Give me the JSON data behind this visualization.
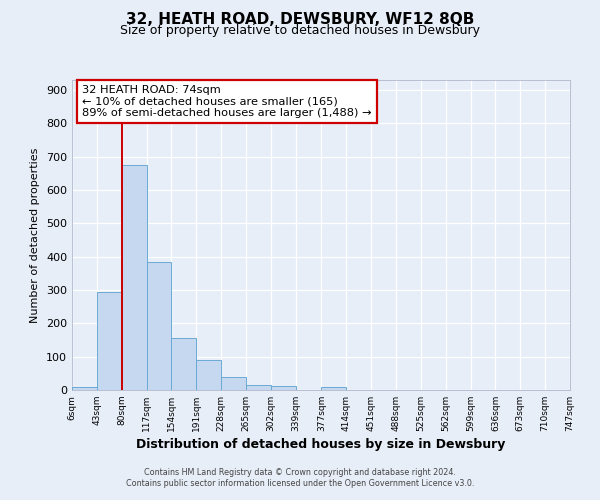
{
  "title": "32, HEATH ROAD, DEWSBURY, WF12 8QB",
  "subtitle": "Size of property relative to detached houses in Dewsbury",
  "xlabel": "Distribution of detached houses by size in Dewsbury",
  "ylabel": "Number of detached properties",
  "bar_edges": [
    6,
    43,
    80,
    117,
    154,
    191,
    228,
    265,
    302,
    339,
    377,
    414,
    451,
    488,
    525,
    562,
    599,
    636,
    673,
    710,
    747
  ],
  "bar_heights": [
    8,
    295,
    675,
    383,
    155,
    90,
    40,
    15,
    12,
    0,
    10,
    0,
    0,
    0,
    0,
    0,
    0,
    0,
    0,
    0
  ],
  "bar_color": "#c5d8f0",
  "bar_edgecolor": "#6aaad4",
  "vline_x": 80,
  "vline_color": "#cc0000",
  "ylim": [
    0,
    930
  ],
  "yticks": [
    0,
    100,
    200,
    300,
    400,
    500,
    600,
    700,
    800,
    900
  ],
  "xtick_labels": [
    "6sqm",
    "43sqm",
    "80sqm",
    "117sqm",
    "154sqm",
    "191sqm",
    "228sqm",
    "265sqm",
    "302sqm",
    "339sqm",
    "377sqm",
    "414sqm",
    "451sqm",
    "488sqm",
    "525sqm",
    "562sqm",
    "599sqm",
    "636sqm",
    "673sqm",
    "710sqm",
    "747sqm"
  ],
  "annotation_title": "32 HEATH ROAD: 74sqm",
  "annotation_line1": "← 10% of detached houses are smaller (165)",
  "annotation_line2": "89% of semi-detached houses are larger (1,488) →",
  "annotation_box_facecolor": "#ffffff",
  "annotation_box_edgecolor": "#cc0000",
  "footer_line1": "Contains HM Land Registry data © Crown copyright and database right 2024.",
  "footer_line2": "Contains public sector information licensed under the Open Government Licence v3.0.",
  "background_color": "#e8eef8",
  "grid_color": "#ffffff"
}
